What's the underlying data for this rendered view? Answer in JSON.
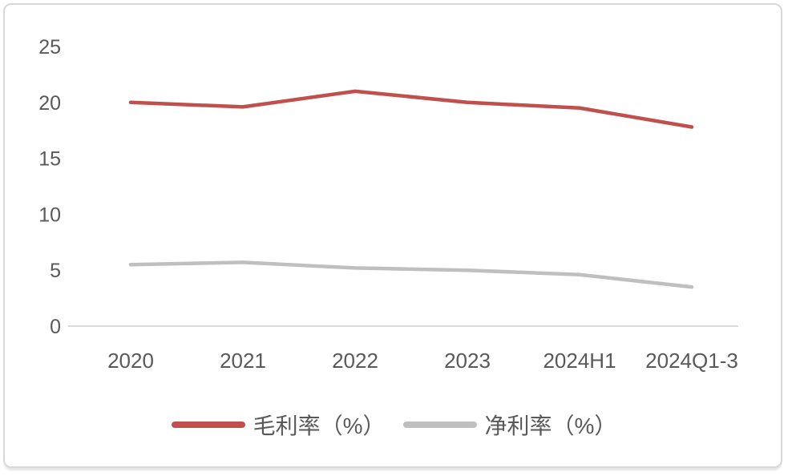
{
  "chart_data": {
    "type": "line",
    "title": "",
    "xlabel": "",
    "ylabel": "",
    "categories": [
      "2020",
      "2021",
      "2022",
      "2023",
      "2024H1",
      "2024Q1-3"
    ],
    "series": [
      {
        "name": "毛利率（%）",
        "color": "#C0504D",
        "values": [
          20.0,
          19.6,
          21.0,
          20.0,
          19.5,
          17.8
        ]
      },
      {
        "name": "净利率（%）",
        "color": "#BFBFBF",
        "values": [
          5.5,
          5.7,
          5.2,
          5.0,
          4.6,
          3.5
        ]
      }
    ],
    "yticks": [
      0,
      5,
      10,
      15,
      20,
      25
    ],
    "ylim": [
      0,
      25
    ],
    "grid": false,
    "legend_position": "bottom",
    "axis_color": "#D9D9D9",
    "label_color": "#595959",
    "frame_color": "#D8D8D8",
    "background_color": "#FFFFFF"
  }
}
